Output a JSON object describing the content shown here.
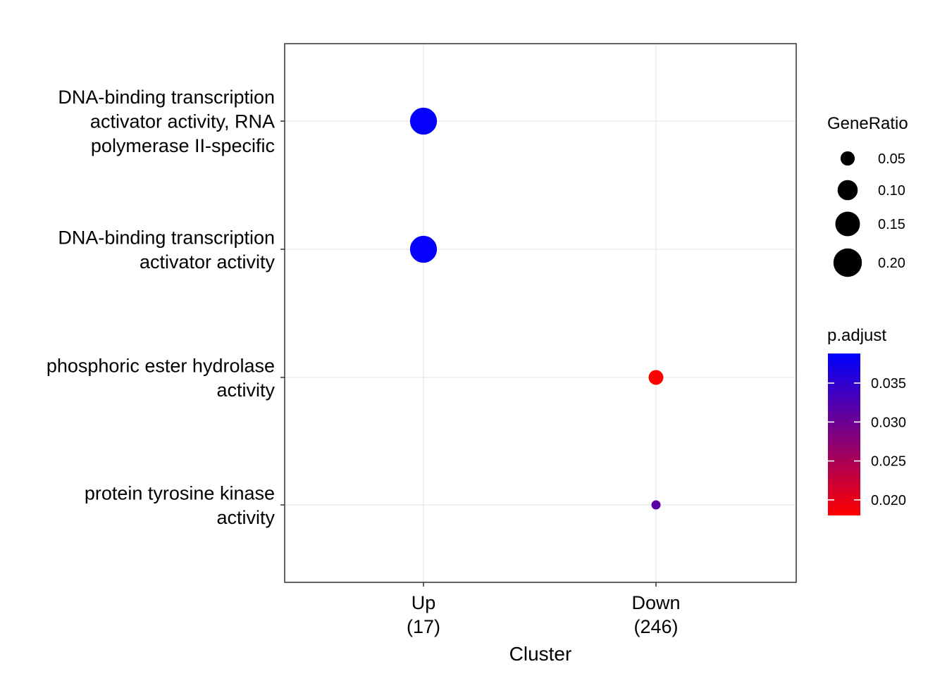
{
  "chart_data": {
    "type": "scatter",
    "title": "",
    "xlabel": "Cluster",
    "ylabel": "",
    "x_categories": [
      {
        "line1": "Up",
        "line2": "(17)"
      },
      {
        "line1": "Down",
        "line2": "(246)"
      }
    ],
    "y_categories": [
      {
        "lines": [
          "DNA-binding transcription",
          "activator activity, RNA",
          "polymerase II-specific"
        ]
      },
      {
        "lines": [
          "DNA-binding transcription",
          "activator activity"
        ]
      },
      {
        "lines": [
          "phosphoric ester hydrolase",
          "activity"
        ]
      },
      {
        "lines": [
          "protein tyrosine kinase",
          "activity"
        ]
      }
    ],
    "points": [
      {
        "x": 0,
        "y": 0,
        "gene_ratio": 0.18,
        "p_adjust": 0.0385
      },
      {
        "x": 0,
        "y": 1,
        "gene_ratio": 0.18,
        "p_adjust": 0.0385
      },
      {
        "x": 1,
        "y": 2,
        "gene_ratio": 0.054,
        "p_adjust": 0.018
      },
      {
        "x": 1,
        "y": 3,
        "gene_ratio": 0.0207,
        "p_adjust": 0.0315
      }
    ],
    "legend_size": {
      "title": "GeneRatio",
      "values": [
        0.05,
        0.1,
        0.15,
        0.2
      ],
      "labels": [
        "0.05",
        "0.10",
        "0.15",
        "0.20"
      ]
    },
    "legend_color": {
      "title": "p.adjust",
      "range": [
        0.018,
        0.0388
      ],
      "ticks": [
        0.02,
        0.025,
        0.03,
        0.035
      ],
      "labels": [
        "0.020",
        "0.025",
        "0.030",
        "0.035"
      ],
      "low_color": "#ff0000",
      "high_color": "#0000ff"
    },
    "grid": true,
    "legend_position": "right"
  }
}
